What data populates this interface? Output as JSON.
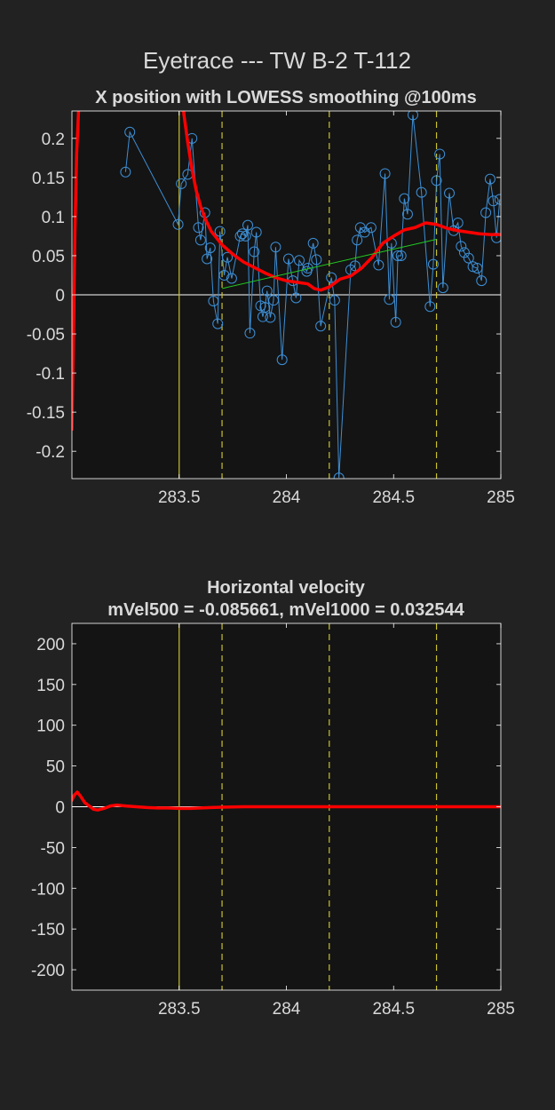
{
  "figure": {
    "title": "Eyetrace --- TW B-2 T-112"
  },
  "colors": {
    "background": "#222222",
    "axes_bg": "#141414",
    "text": "#d9d9d9",
    "zero_line": "#ffffff",
    "smooth": "#ff0000",
    "raw": "#3d8fd6",
    "fit": "#22c922",
    "event_line": "#c8c030"
  },
  "chart_data": [
    {
      "type": "line",
      "title": "X position with LOWESS smoothing @100ms",
      "xlabel": "",
      "ylabel": "",
      "xlim": [
        283.0,
        285.0
      ],
      "ylim": [
        -0.235,
        0.235
      ],
      "xticks": [
        283.5,
        284,
        284.5,
        285
      ],
      "xtick_labels": [
        "283.5",
        "284",
        "284.5",
        "285"
      ],
      "yticks": [
        -0.2,
        -0.15,
        -0.1,
        -0.05,
        0,
        0.05,
        0.1,
        0.15,
        0.2
      ],
      "ytick_labels": [
        "-0.2",
        "-0.15",
        "-0.1",
        "-0.05",
        "0",
        "0.05",
        "0.1",
        "0.15",
        "0.2"
      ],
      "grid": false,
      "vlines": [
        {
          "x": 283.5,
          "style": "solid"
        },
        {
          "x": 283.7,
          "style": "dashed"
        },
        {
          "x": 284.2,
          "style": "dashed"
        },
        {
          "x": 284.7,
          "style": "dashed"
        }
      ],
      "series": [
        {
          "kind": "raw",
          "marker": "circle",
          "x": [
            283.25,
            283.27,
            283.495,
            283.51,
            283.54,
            283.56,
            283.59,
            283.6,
            283.62,
            283.63,
            283.645,
            283.66,
            283.68,
            283.69,
            283.71,
            283.725,
            283.745,
            283.785,
            283.795,
            283.81,
            283.82,
            283.83,
            283.85,
            283.86,
            283.88,
            283.89,
            283.9,
            283.91,
            283.925,
            283.94,
            283.95,
            283.98,
            284.01,
            284.03,
            284.045,
            284.06,
            284.095,
            284.1,
            284.125,
            284.14,
            284.16,
            284.21,
            284.225,
            284.245,
            284.3,
            284.32,
            284.33,
            284.345,
            284.365,
            284.395,
            284.43,
            284.46,
            284.48,
            284.49,
            284.51,
            284.52,
            284.535,
            284.55,
            284.565,
            284.59,
            284.63,
            284.67,
            284.685,
            284.7,
            284.715,
            284.73,
            284.76,
            284.78,
            284.8,
            284.815,
            284.83,
            284.85,
            284.87,
            284.89,
            284.91,
            284.93,
            284.95,
            284.965,
            284.98,
            284.995
          ],
          "y": [
            0.157,
            0.208,
            0.09,
            0.142,
            0.154,
            0.2,
            0.086,
            0.07,
            0.105,
            0.046,
            0.06,
            -0.008,
            -0.037,
            0.081,
            0.025,
            0.048,
            0.021,
            0.075,
            0.078,
            0.075,
            0.089,
            -0.049,
            0.055,
            0.08,
            -0.014,
            -0.028,
            -0.016,
            0.005,
            -0.029,
            -0.007,
            0.061,
            -0.083,
            0.046,
            0.018,
            -0.004,
            0.044,
            0.03,
            0.034,
            0.066,
            0.045,
            -0.04,
            0.022,
            -0.007,
            -0.234,
            0.032,
            0.037,
            0.07,
            0.086,
            0.08,
            0.086,
            0.038,
            0.155,
            -0.006,
            0.066,
            -0.035,
            0.05,
            0.05,
            0.123,
            0.103,
            0.23,
            0.131,
            -0.015,
            0.039,
            0.146,
            0.18,
            0.009,
            0.13,
            0.082,
            0.092,
            0.062,
            0.054,
            0.047,
            0.036,
            0.034,
            0.018,
            0.105,
            0.148,
            0.12,
            0.073,
            0.122
          ]
        },
        {
          "kind": "smooth",
          "x": [
            283.0,
            283.008,
            283.014,
            283.022,
            283.035,
            283.05,
            283.52,
            283.54,
            283.56,
            283.58,
            283.6,
            283.62,
            283.65,
            283.7,
            283.75,
            283.8,
            283.85,
            283.9,
            283.95,
            284.0,
            284.05,
            284.1,
            284.13,
            284.16,
            284.2,
            284.25,
            284.3,
            284.35,
            284.4,
            284.45,
            284.5,
            284.55,
            284.6,
            284.65,
            284.7,
            284.75,
            284.8,
            284.85,
            284.9,
            284.95,
            285.0
          ],
          "y": [
            -0.172,
            -0.03,
            0.08,
            0.18,
            0.26,
            0.3,
            0.235,
            0.195,
            0.16,
            0.133,
            0.113,
            0.098,
            0.081,
            0.064,
            0.052,
            0.042,
            0.035,
            0.028,
            0.022,
            0.018,
            0.016,
            0.014,
            0.008,
            0.006,
            0.01,
            0.02,
            0.024,
            0.034,
            0.048,
            0.066,
            0.075,
            0.083,
            0.086,
            0.092,
            0.09,
            0.085,
            0.082,
            0.08,
            0.078,
            0.077,
            0.077
          ]
        },
        {
          "kind": "fit",
          "x": [
            283.7,
            284.7
          ],
          "y": [
            0.008,
            0.071
          ]
        }
      ]
    },
    {
      "type": "line",
      "title": "Horizontal velocity",
      "subtitle": "mVel500 = -0.085661, mVel1000 = 0.032544",
      "xlabel": "",
      "ylabel": "",
      "xlim": [
        283.0,
        285.0
      ],
      "ylim": [
        -225,
        225
      ],
      "xticks": [
        283.5,
        284,
        284.5,
        285
      ],
      "xtick_labels": [
        "283.5",
        "284",
        "284.5",
        "285"
      ],
      "yticks": [
        -200,
        -150,
        -100,
        -50,
        0,
        50,
        100,
        150,
        200
      ],
      "ytick_labels": [
        "-200",
        "-150",
        "-100",
        "-50",
        "0",
        "50",
        "100",
        "150",
        "200"
      ],
      "grid": false,
      "vlines": [
        {
          "x": 283.5,
          "style": "solid"
        },
        {
          "x": 283.7,
          "style": "dashed"
        },
        {
          "x": 284.2,
          "style": "dashed"
        },
        {
          "x": 284.7,
          "style": "dashed"
        }
      ],
      "series": [
        {
          "kind": "smooth",
          "x": [
            283.0,
            283.01,
            283.025,
            283.04,
            283.06,
            283.08,
            283.1,
            283.12,
            283.15,
            283.18,
            283.21,
            283.25,
            283.3,
            283.35,
            283.4,
            283.45,
            283.5,
            283.55,
            283.6,
            283.65,
            283.7,
            283.8,
            284.0,
            284.2,
            284.4,
            284.6,
            284.8,
            285.0
          ],
          "y": [
            8,
            14,
            18,
            13,
            5,
            1,
            -3,
            -4,
            -2,
            1,
            2,
            1,
            0,
            -1,
            -1.5,
            -1.5,
            -2,
            -2,
            -1.5,
            -1,
            -0.5,
            0,
            0,
            0,
            0,
            0,
            0,
            0
          ]
        }
      ]
    }
  ]
}
